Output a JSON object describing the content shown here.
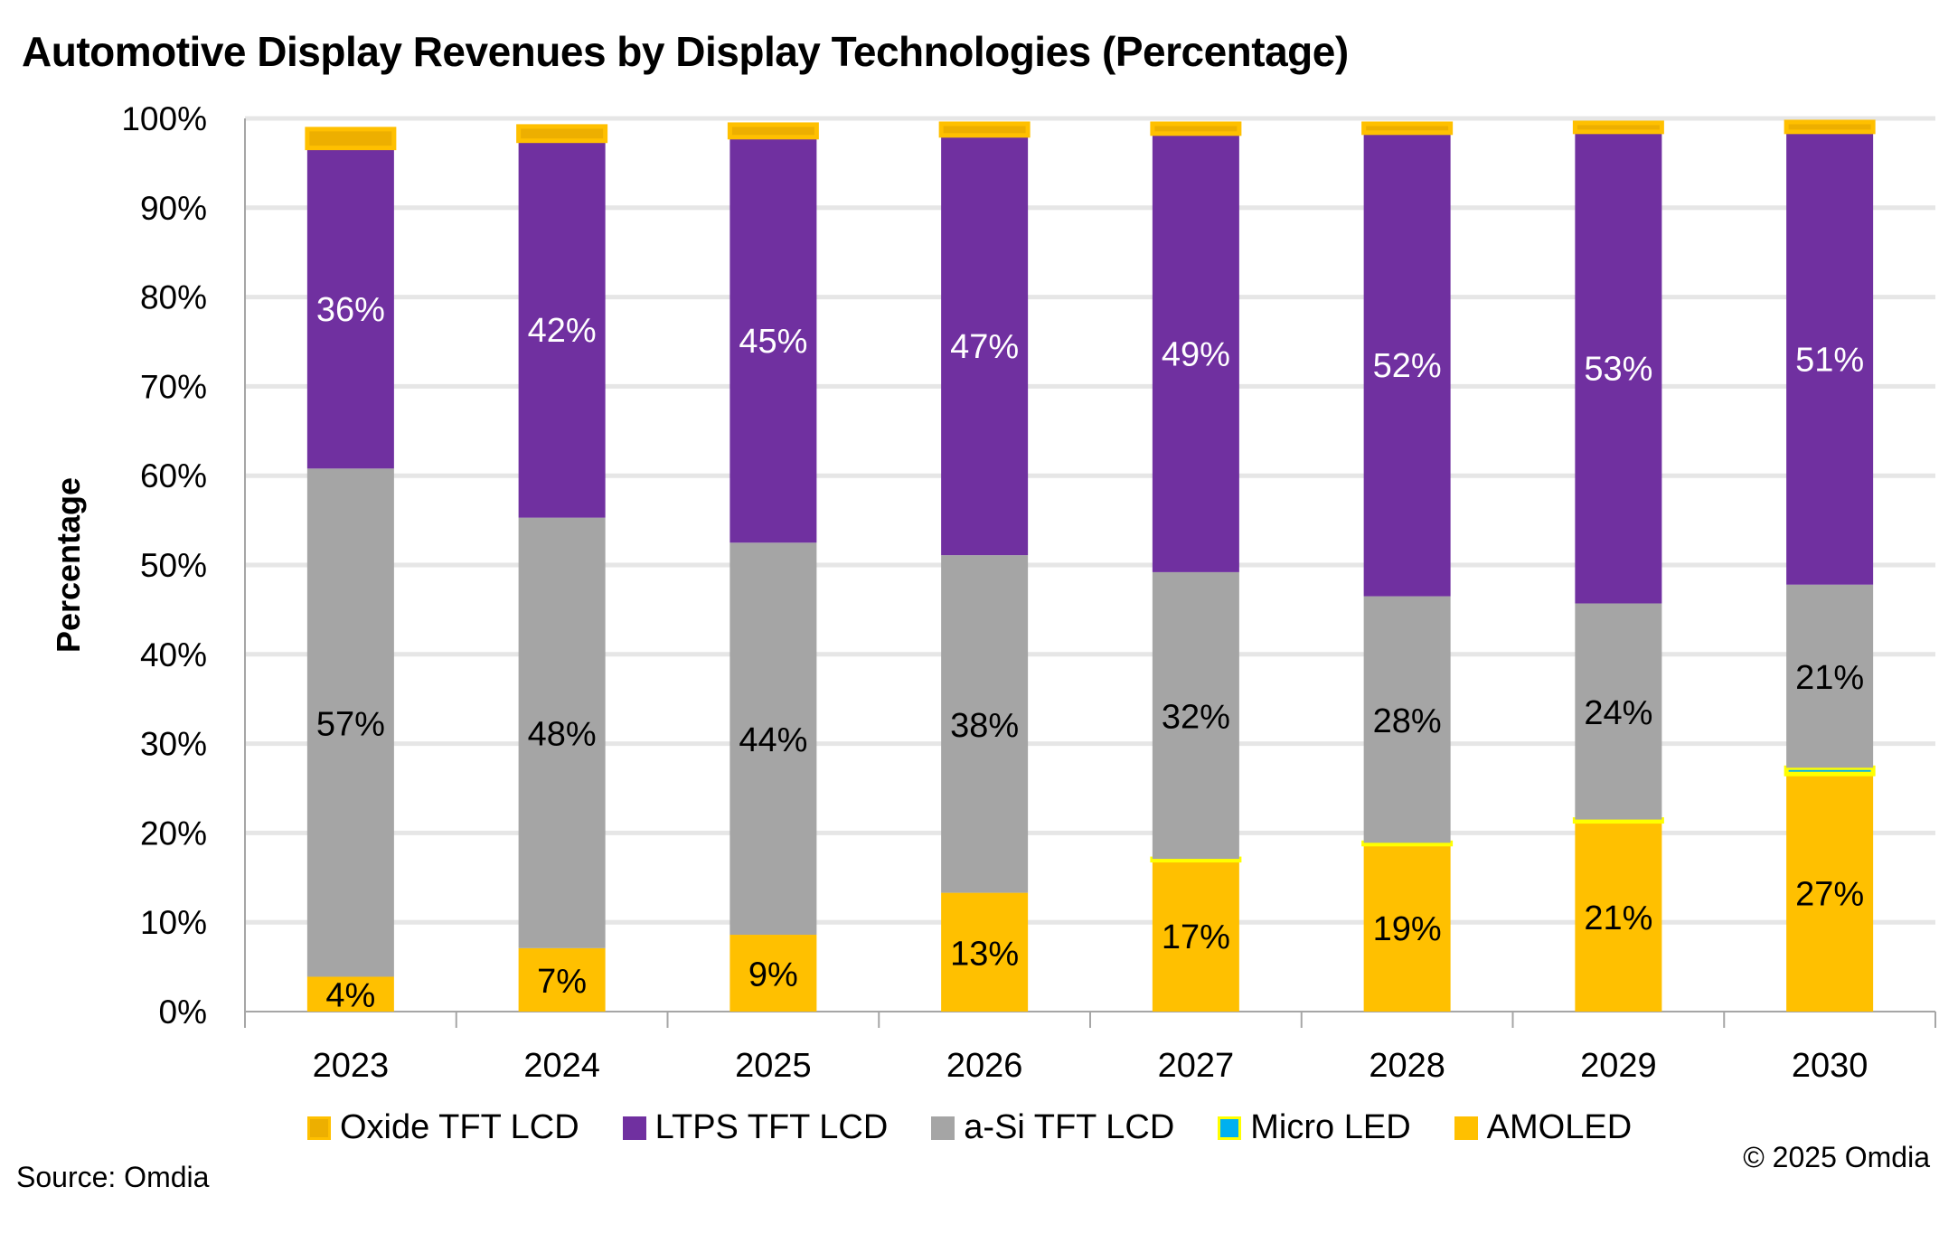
{
  "chart_data": {
    "type": "bar",
    "stacked": true,
    "title": "Automotive Display Revenues by Display Technologies (Percentage)",
    "xlabel": "",
    "ylabel": "Percentage",
    "ylim": [
      0,
      100
    ],
    "yticks": [
      "0%",
      "10%",
      "20%",
      "30%",
      "40%",
      "50%",
      "60%",
      "70%",
      "80%",
      "90%",
      "100%"
    ],
    "grid": true,
    "legend_placement": "bottom",
    "categories": [
      "2023",
      "2024",
      "2025",
      "2026",
      "2027",
      "2028",
      "2029",
      "2030"
    ],
    "series": [
      {
        "name": "AMOLED",
        "color": "#FFC000",
        "border": "#FFC000",
        "values": [
          3.9,
          7.1,
          8.6,
          13.3,
          17.0,
          18.8,
          21.3,
          26.6
        ],
        "labels": [
          "4%",
          "7%",
          "9%",
          "13%",
          "17%",
          "19%",
          "21%",
          "27%"
        ],
        "label_color": "#000000"
      },
      {
        "name": "Micro LED",
        "color": "#00B0F0",
        "border": "#FFFF00",
        "values": [
          0,
          0,
          0,
          0,
          0.1,
          0.1,
          0.2,
          0.7
        ],
        "labels": []
      },
      {
        "name": "a-Si TFT LCD",
        "color": "#A5A5A5",
        "border": "#A5A5A5",
        "values": [
          56.9,
          48.2,
          43.9,
          37.8,
          32.1,
          27.6,
          24.2,
          20.5
        ],
        "labels": [
          "57%",
          "48%",
          "44%",
          "38%",
          "32%",
          "28%",
          "24%",
          "21%"
        ],
        "label_color": "#000000"
      },
      {
        "name": "LTPS TFT LCD",
        "color": "#7030A0",
        "border": "#7030A0",
        "values": [
          35.9,
          42.2,
          45.4,
          47.0,
          49.1,
          51.9,
          52.8,
          50.7
        ],
        "labels": [
          "36%",
          "42%",
          "45%",
          "47%",
          "49%",
          "52%",
          "53%",
          "51%"
        ],
        "label_color": "#FFFFFF"
      },
      {
        "name": "Oxide TFT LCD",
        "color": "#EDAF00",
        "border": "#FFC000",
        "values": [
          2.1,
          1.6,
          1.4,
          1.3,
          1.1,
          1.0,
          1.0,
          1.1
        ],
        "labels": []
      }
    ],
    "legend_order": [
      "Oxide TFT LCD",
      "LTPS TFT LCD",
      "a-Si TFT LCD",
      "Micro LED",
      "AMOLED"
    ]
  },
  "footer": {
    "source": "Source: Omdia",
    "copyright": "© 2025 Omdia"
  }
}
